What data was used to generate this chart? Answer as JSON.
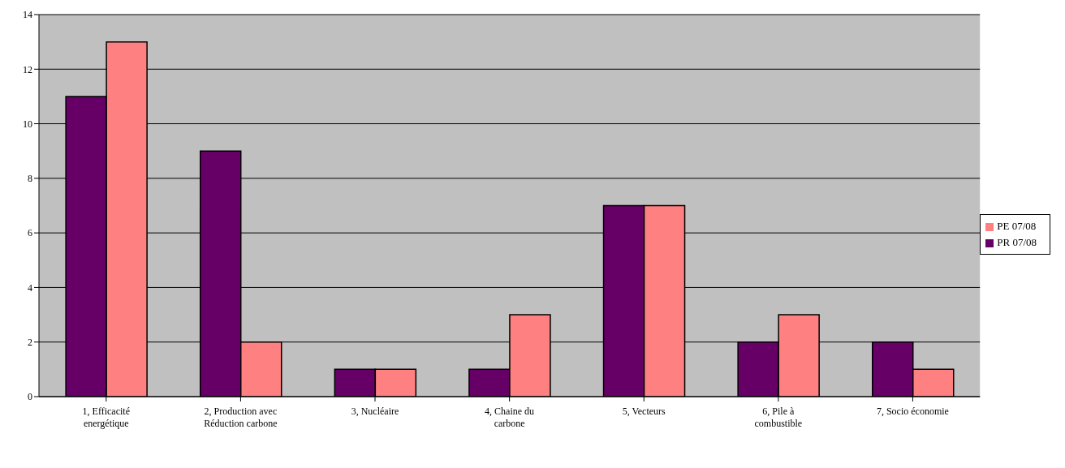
{
  "chart_data": {
    "type": "bar",
    "categories": [
      "1, Efficacité energétique",
      "2, Production avec Réduction carbone",
      "3, Nucléaire",
      "4, Chaine du carbone",
      "5, Vecteurs",
      "6, Pile à combustible",
      "7, Socio économie"
    ],
    "series": [
      {
        "name": "PR 07/08",
        "color": "#660066",
        "values": [
          11,
          9,
          1,
          1,
          7,
          2,
          2
        ]
      },
      {
        "name": "PE 07/08",
        "color": "#ff8080",
        "values": [
          13,
          2,
          1,
          3,
          7,
          3,
          1
        ]
      }
    ],
    "ylim": [
      0,
      14
    ],
    "yticks": [
      0,
      2,
      4,
      6,
      8,
      10,
      12,
      14
    ],
    "grid": "y",
    "legend": "right"
  }
}
